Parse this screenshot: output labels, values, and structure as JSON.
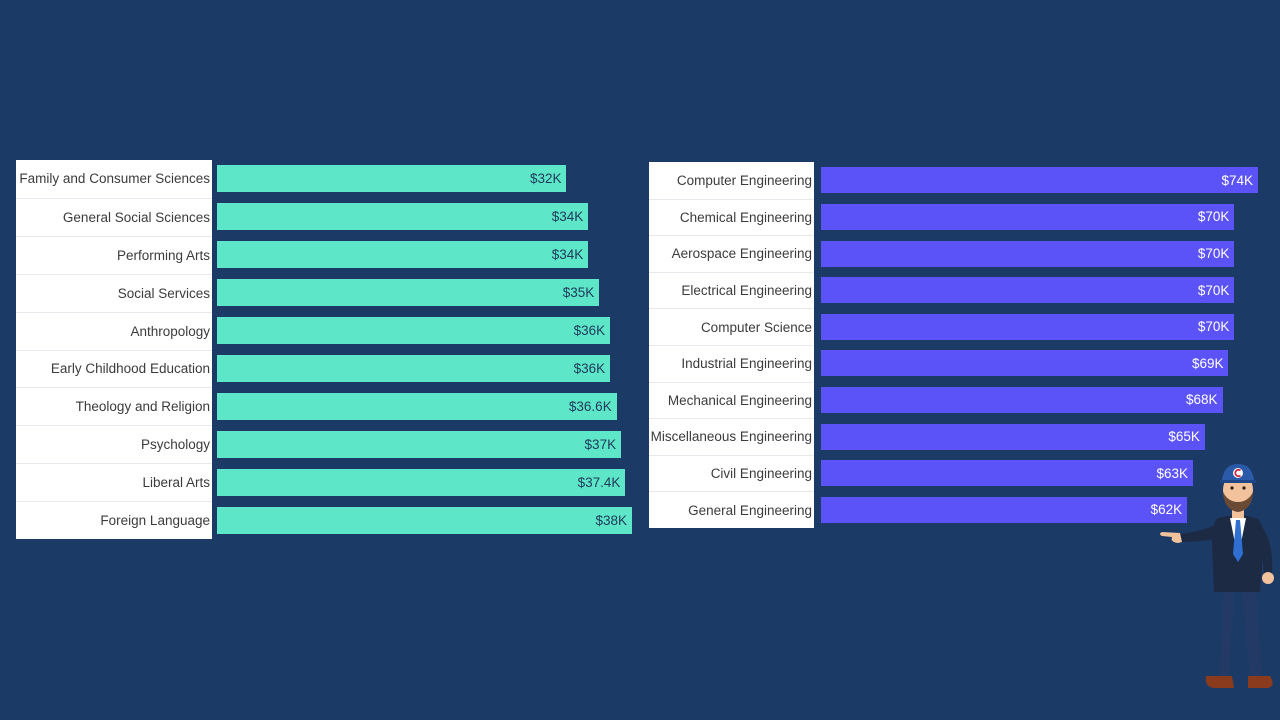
{
  "colors": {
    "background": "#1c3a66",
    "left_bar": "#5ee6c8",
    "right_bar": "#5b53f7",
    "label_panel": "#ffffff"
  },
  "chart_data": [
    {
      "type": "bar",
      "orientation": "horizontal",
      "categories": [
        "Family and Consumer Sciences",
        "General Social Sciences",
        "Performing Arts",
        "Social Services",
        "Anthropology",
        "Early Childhood Education",
        "Theology and Religion",
        "Psychology",
        "Liberal Arts",
        "Foreign Language"
      ],
      "values": [
        32,
        34,
        34,
        35,
        36,
        36,
        36.6,
        37,
        37.4,
        38
      ],
      "value_labels": [
        "$32K",
        "$34K",
        "$34K",
        "$35K",
        "$36K",
        "$36K",
        "$36.6K",
        "$37K",
        "$37.4K",
        "$38K"
      ],
      "title": "",
      "xlabel": "",
      "ylabel": "",
      "xlim": [
        0,
        38
      ],
      "grid": false,
      "legend": "none",
      "color": "#5ee6c8"
    },
    {
      "type": "bar",
      "orientation": "horizontal",
      "categories": [
        "Computer Engineering",
        "Chemical Engineering",
        "Aerospace Engineering",
        "Electrical Engineering",
        "Computer Science",
        "Industrial Engineering",
        "Mechanical Engineering",
        "Miscellaneous Engineering",
        "Civil Engineering",
        "General Engineering"
      ],
      "values": [
        74,
        70,
        70,
        70,
        70,
        69,
        68,
        65,
        63,
        62
      ],
      "value_labels": [
        "$74K",
        "$70K",
        "$70K",
        "$70K",
        "$70K",
        "$69K",
        "$68K",
        "$65K",
        "$63K",
        "$62K"
      ],
      "title": "",
      "xlabel": "",
      "ylabel": "",
      "xlim": [
        0,
        74
      ],
      "grid": false,
      "legend": "none",
      "color": "#5b53f7"
    }
  ]
}
